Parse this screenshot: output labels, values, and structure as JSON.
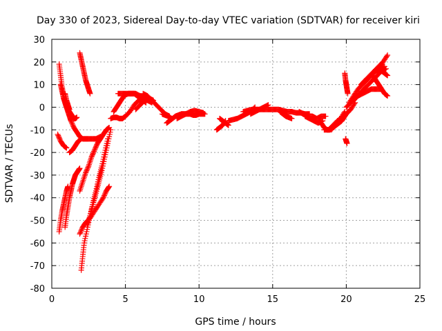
{
  "chart_data": {
    "type": "scatter",
    "title": "Day 330 of 2023, Sidereal Day-to-day VTEC variation (SDTVAR) for receiver kiri",
    "xlabel": "GPS time / hours",
    "ylabel": "SDTVAR / TECUs",
    "xlim": [
      0,
      25
    ],
    "ylim": [
      -80,
      30
    ],
    "xticks": [
      0,
      5,
      10,
      15,
      20,
      25
    ],
    "yticks": [
      -80,
      -70,
      -60,
      -50,
      -40,
      -30,
      -20,
      -10,
      0,
      10,
      20,
      30
    ],
    "grid": true,
    "marker": "+",
    "color": "#ff0000",
    "series": [
      {
        "x": [
          0.5,
          0.6,
          0.7,
          0.8,
          0.9,
          1.0,
          1.1,
          1.2,
          1.3,
          1.4
        ],
        "y": [
          19,
          14,
          9,
          5,
          2,
          0,
          -1,
          -2,
          -3,
          -4
        ]
      },
      {
        "x": [
          0.6,
          0.7,
          0.8,
          0.9,
          1.0,
          1.1,
          1.2,
          1.3,
          1.5,
          1.7,
          1.9,
          2.1,
          2.3,
          2.5,
          2.8,
          3.0,
          3.3
        ],
        "y": [
          10,
          7,
          4,
          2,
          0,
          -2,
          -4,
          -6,
          -9,
          -11,
          -13,
          -14,
          -14,
          -14,
          -14,
          -14,
          -13
        ]
      },
      {
        "x": [
          0.9,
          1.0,
          1.1,
          1.2
        ],
        "y": [
          6,
          3,
          1,
          -1
        ]
      },
      {
        "x": [
          1.3,
          1.4,
          1.5,
          1.6,
          1.7
        ],
        "y": [
          -4,
          -4.5,
          -5,
          -5,
          -4.5
        ]
      },
      {
        "x": [
          0.4,
          0.6,
          0.8,
          1.0
        ],
        "y": [
          -12,
          -15,
          -17,
          -18
        ]
      },
      {
        "x": [
          1.2,
          1.4,
          1.6,
          1.8,
          2.0
        ],
        "y": [
          -20,
          -19,
          -17,
          -15,
          -14
        ]
      },
      {
        "x": [
          0.5,
          0.6,
          0.7,
          0.8,
          0.9,
          1.0,
          1.1
        ],
        "y": [
          -55,
          -50,
          -46,
          -43,
          -40,
          -37,
          -35
        ]
      },
      {
        "x": [
          0.9,
          1.0,
          1.1,
          1.2,
          1.3,
          1.4,
          1.5,
          1.6,
          1.7,
          1.8,
          1.9
        ],
        "y": [
          -53,
          -48,
          -44,
          -40,
          -37,
          -34,
          -32,
          -30,
          -29,
          -28,
          -27
        ]
      },
      {
        "x": [
          1.9,
          2.0,
          2.1,
          2.2,
          2.3,
          2.4,
          2.5,
          2.6
        ],
        "y": [
          24,
          21,
          18,
          15,
          12,
          10,
          8,
          6
        ]
      },
      {
        "x": [
          2.0,
          2.1,
          2.2,
          2.4,
          2.6,
          2.8,
          3.0,
          3.2,
          3.4,
          3.6,
          3.8,
          4.0
        ],
        "y": [
          -72,
          -66,
          -60,
          -54,
          -48,
          -43,
          -38,
          -33,
          -28,
          -22,
          -16,
          -10
        ]
      },
      {
        "x": [
          1.9,
          2.1,
          2.3,
          2.5,
          2.7,
          2.9,
          3.1,
          3.3,
          3.5,
          3.7,
          3.9
        ],
        "y": [
          -37,
          -33,
          -29,
          -26,
          -22,
          -19,
          -16,
          -14,
          -12,
          -10,
          -9
        ]
      },
      {
        "x": [
          1.9,
          2.1,
          2.3,
          2.6,
          2.9,
          3.2,
          3.5,
          3.7,
          3.9
        ],
        "y": [
          -56,
          -53,
          -51,
          -49,
          -46,
          -43,
          -40,
          -37,
          -35
        ]
      },
      {
        "x": [
          2.4,
          2.6,
          2.8,
          3.0,
          3.2,
          3.4,
          3.6,
          3.8
        ],
        "y": [
          -52,
          -48,
          -42,
          -37,
          -31,
          -26,
          -20,
          -14
        ]
      },
      {
        "x": [
          4.0,
          4.2,
          4.4,
          4.6,
          4.8,
          5.0
        ],
        "y": [
          -5,
          -4.5,
          -4.5,
          -5,
          -5,
          -4
        ]
      },
      {
        "x": [
          4.2,
          4.4,
          4.6,
          4.8,
          5.0,
          5.2,
          5.4,
          5.6,
          5.8,
          6.0,
          6.2,
          6.4
        ],
        "y": [
          -2,
          0,
          2,
          4,
          5.5,
          6,
          6,
          6,
          5,
          4,
          3,
          2
        ]
      },
      {
        "x": [
          4.5,
          4.8,
          5.1,
          5.4,
          5.7,
          6.0,
          6.3
        ],
        "y": [
          6,
          6,
          6,
          6,
          6,
          5,
          4
        ]
      },
      {
        "x": [
          5.0,
          5.3,
          5.6,
          5.9,
          6.2,
          6.5,
          6.8
        ],
        "y": [
          -4,
          -2,
          1,
          3,
          4,
          3,
          2
        ]
      },
      {
        "x": [
          5.7,
          6.0,
          6.3,
          6.6,
          6.9
        ],
        "y": [
          -1,
          1,
          3,
          4,
          3
        ]
      },
      {
        "x": [
          6.2,
          6.5,
          6.8,
          7.1,
          7.4,
          7.7,
          8.0
        ],
        "y": [
          6,
          5,
          3,
          1,
          -1,
          -3,
          -4
        ]
      },
      {
        "x": [
          7.5,
          7.7,
          7.9,
          8.1
        ],
        "y": [
          -3,
          -3.5,
          -4,
          -5
        ]
      },
      {
        "x": [
          7.8,
          8.0,
          8.2,
          8.4,
          8.6,
          8.8,
          9.0,
          9.2,
          9.4,
          9.6,
          9.8,
          10.0,
          10.2,
          10.4
        ],
        "y": [
          -7,
          -6,
          -5,
          -4,
          -3.5,
          -3,
          -3,
          -3,
          -3,
          -3.5,
          -3.5,
          -3,
          -3,
          -3
        ]
      },
      {
        "x": [
          8.5,
          8.8,
          9.1,
          9.4,
          9.7,
          10.0,
          10.3
        ],
        "y": [
          -5,
          -4,
          -3,
          -2,
          -1.5,
          -2,
          -2.5
        ]
      },
      {
        "x": [
          11.2,
          11.4,
          11.6,
          11.8
        ],
        "y": [
          -10,
          -9,
          -8,
          -6
        ]
      },
      {
        "x": [
          11.4,
          11.6,
          11.8,
          12.0
        ],
        "y": [
          -5,
          -6,
          -7,
          -8
        ]
      },
      {
        "x": [
          12.0,
          12.3,
          12.6,
          12.9,
          13.2,
          13.5,
          13.8
        ],
        "y": [
          -6,
          -5.5,
          -5,
          -4,
          -3,
          -2,
          0
        ]
      },
      {
        "x": [
          13.0,
          13.3,
          13.6,
          13.9,
          14.2,
          14.5,
          14.8,
          15.1,
          15.4,
          15.7,
          16.0,
          16.3,
          16.6,
          16.9,
          17.2,
          17.5
        ],
        "y": [
          -2,
          -1.5,
          -1,
          -1,
          -1,
          -1,
          -1,
          -1,
          -1,
          -1.5,
          -2,
          -2,
          -2.5,
          -2.5,
          -3,
          -3
        ]
      },
      {
        "x": [
          13.5,
          13.8,
          14.1,
          14.4,
          14.7
        ],
        "y": [
          -3,
          -2,
          -1,
          0,
          1
        ]
      },
      {
        "x": [
          15.5,
          15.7,
          15.9,
          16.1,
          16.3
        ],
        "y": [
          -2,
          -3,
          -4,
          -4.5,
          -5
        ]
      },
      {
        "x": [
          16.8,
          17.1,
          17.4,
          17.7,
          18.0,
          18.3,
          18.6
        ],
        "y": [
          -2,
          -3,
          -4,
          -4,
          -5,
          -4,
          -4
        ]
      },
      {
        "x": [
          17.2,
          17.5,
          17.8,
          18.1,
          18.4
        ],
        "y": [
          -4,
          -5,
          -6,
          -7,
          -6
        ]
      },
      {
        "x": [
          18.3,
          18.5,
          18.7,
          18.9,
          19.1,
          19.3,
          19.5,
          19.7,
          19.9,
          20.1
        ],
        "y": [
          -7,
          -9,
          -10,
          -10,
          -9,
          -8,
          -7,
          -6,
          -4,
          -2
        ]
      },
      {
        "x": [
          18.5,
          18.8,
          19.1,
          19.4,
          19.7,
          20.0,
          20.3,
          20.6
        ],
        "y": [
          -10,
          -10,
          -8,
          -6,
          -5,
          -3,
          -1,
          2
        ]
      },
      {
        "x": [
          19.0,
          19.3,
          19.6,
          19.9
        ],
        "y": [
          -10,
          -7,
          -5,
          -2
        ]
      },
      {
        "x": [
          19.9,
          19.95,
          20.0,
          20.05,
          20.1
        ],
        "y": [
          15,
          12,
          10,
          8,
          6
        ]
      },
      {
        "x": [
          19.95,
          20.0,
          20.05
        ],
        "y": [
          -14,
          -15,
          -16
        ]
      },
      {
        "x": [
          20.0,
          20.3,
          20.6,
          20.9,
          21.2,
          21.5,
          21.8,
          22.1,
          22.4,
          22.7
        ],
        "y": [
          0,
          2,
          4,
          6,
          8,
          10,
          12,
          14,
          16,
          17
        ]
      },
      {
        "x": [
          20.2,
          20.5,
          20.8,
          21.1,
          21.4,
          21.7,
          22.0,
          22.3,
          22.6
        ],
        "y": [
          2,
          5,
          8,
          10,
          12,
          14,
          16,
          17,
          18
        ]
      },
      {
        "x": [
          20.5,
          20.8,
          21.1,
          21.4,
          21.7,
          22.0,
          22.3
        ],
        "y": [
          3,
          5,
          6,
          7,
          8,
          8,
          8
        ]
      },
      {
        "x": [
          21.0,
          21.3,
          21.6,
          21.9,
          22.2,
          22.5,
          22.8
        ],
        "y": [
          10,
          12,
          14,
          16,
          18,
          20,
          23
        ]
      },
      {
        "x": [
          21.8,
          22.0,
          22.2,
          22.4,
          22.6,
          22.8
        ],
        "y": [
          14,
          12,
          10,
          8,
          6,
          5
        ]
      },
      {
        "x": [
          22.2,
          22.4,
          22.6,
          22.8
        ],
        "y": [
          17,
          16,
          15,
          14
        ]
      }
    ]
  }
}
